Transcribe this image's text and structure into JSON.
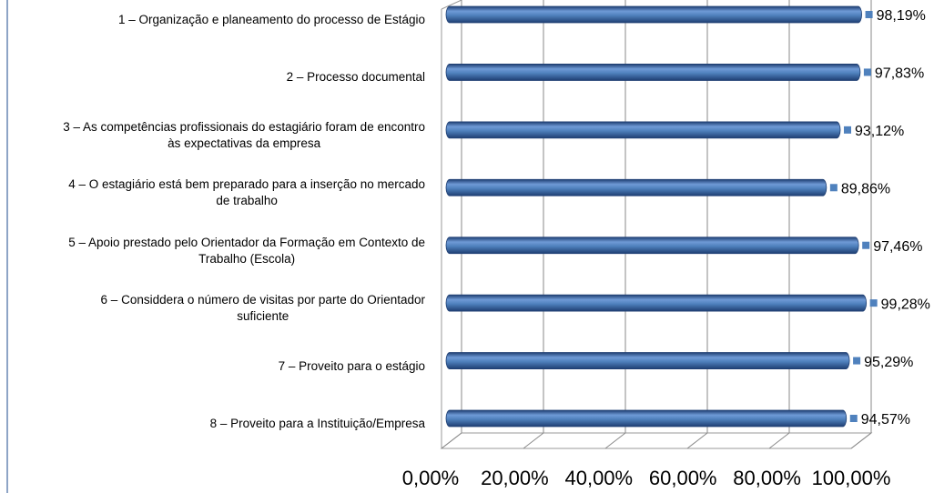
{
  "chart_data": {
    "type": "bar",
    "orientation": "horizontal",
    "categories": [
      "1 – Organização e planeamento do processo de Estágio",
      "2 – Processo documental",
      "3 – As competências profissionais do estagiário foram de encontro\nàs expectativas da empresa",
      "4 – O estagiário está bem preparado para a inserção no mercado\nde trabalho",
      "5 – Apoio prestado pelo Orientador da Formação em Contexto de\nTrabalho (Escola)",
      "6 – Considdera o número de visitas por parte do Orientador\nsuficiente",
      "7 – Proveito para o estágio",
      "8 – Proveito para a Instituição/Empresa"
    ],
    "values": [
      98.19,
      97.83,
      93.12,
      89.86,
      97.46,
      99.28,
      95.29,
      94.57
    ],
    "value_labels": [
      "98,19%",
      "97,83%",
      "93,12%",
      "89,86%",
      "97,46%",
      "99,28%",
      "95,29%",
      "94,57%"
    ],
    "color": "#4f81bd",
    "xlim": [
      0,
      100
    ],
    "xticks": [
      {
        "value": 0,
        "label": "0,00%"
      },
      {
        "value": 20,
        "label": "20,00%"
      },
      {
        "value": 40,
        "label": "40,00%"
      },
      {
        "value": 60,
        "label": "60,00%"
      },
      {
        "value": 80,
        "label": "80,00%"
      },
      {
        "value": 100,
        "label": "100,00%"
      }
    ],
    "grid": true
  }
}
